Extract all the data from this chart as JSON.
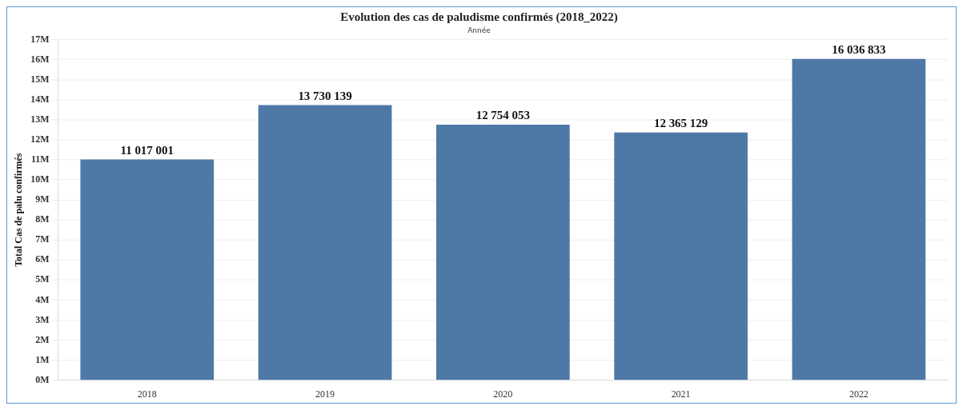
{
  "chart_data": {
    "type": "bar",
    "title": "Evolution des cas de paludisme confirmés (2018_2022)",
    "subtitle": "Année",
    "ylabel": "Total Cas de palu confirmés",
    "categories": [
      "2018",
      "2019",
      "2020",
      "2021",
      "2022"
    ],
    "values": [
      11017001,
      13730139,
      12754053,
      12365129,
      16036833
    ],
    "value_labels": [
      "11 017 001",
      "13 730 139",
      "12 754 053",
      "12 365 129",
      "16 036 833"
    ],
    "color": "#4e79a7",
    "ylim": [
      0,
      17000000
    ],
    "yticks": [
      {
        "value": 0,
        "label": "0M"
      },
      {
        "value": 1000000,
        "label": "1M"
      },
      {
        "value": 2000000,
        "label": "2M"
      },
      {
        "value": 3000000,
        "label": "3M"
      },
      {
        "value": 4000000,
        "label": "4M"
      },
      {
        "value": 5000000,
        "label": "5M"
      },
      {
        "value": 6000000,
        "label": "6M"
      },
      {
        "value": 7000000,
        "label": "7M"
      },
      {
        "value": 8000000,
        "label": "8M"
      },
      {
        "value": 9000000,
        "label": "9M"
      },
      {
        "value": 10000000,
        "label": "10M"
      },
      {
        "value": 11000000,
        "label": "11M"
      },
      {
        "value": 12000000,
        "label": "12M"
      },
      {
        "value": 13000000,
        "label": "13M"
      },
      {
        "value": 14000000,
        "label": "14M"
      },
      {
        "value": 15000000,
        "label": "15M"
      },
      {
        "value": 16000000,
        "label": "16M"
      },
      {
        "value": 17000000,
        "label": "17M"
      }
    ],
    "grid": "y"
  }
}
